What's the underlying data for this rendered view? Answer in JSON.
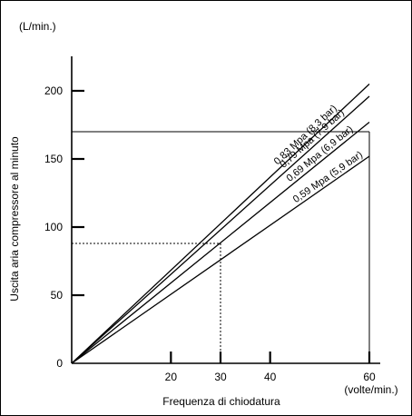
{
  "chart_data": {
    "type": "line",
    "title": "",
    "ylabel": "Uscita aria compressore al minuto",
    "y_unit": "(L/min.)",
    "xlabel": "Frequenza di chiodatura",
    "x_unit": "(volte/min.)",
    "xlim": [
      0,
      60
    ],
    "ylim": [
      0,
      200
    ],
    "x_ticks": [
      20,
      30,
      40,
      60
    ],
    "y_ticks": [
      0,
      50,
      100,
      150,
      200
    ],
    "series": [
      {
        "name": "0,83 Mpa (8,3 bar)",
        "x": [
          0,
          60
        ],
        "y": [
          0,
          205
        ]
      },
      {
        "name": "0,79 Mpa (7,9 bar)",
        "x": [
          0,
          60
        ],
        "y": [
          0,
          196
        ]
      },
      {
        "name": "0,69 Mpa (6,9 bar)",
        "x": [
          0,
          60
        ],
        "y": [
          0,
          177
        ]
      },
      {
        "name": "0,59 Mpa (5,9 bar)",
        "x": [
          0,
          60
        ],
        "y": [
          0,
          152
        ]
      }
    ],
    "reference_lines": [
      {
        "type": "solid",
        "x": 60,
        "y": 170
      },
      {
        "type": "dashed",
        "x": 30,
        "y": 88
      }
    ],
    "grid": false,
    "legend": "labels on lines"
  }
}
